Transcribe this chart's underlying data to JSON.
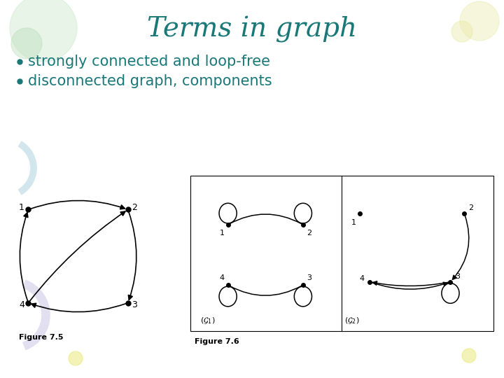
{
  "title": "Terms in graph",
  "title_color": "#1a7878",
  "title_fontsize": 28,
  "bullet_color": "#1a7878",
  "bullet_fontsize": 15,
  "bullets": [
    "strongly connected and loop-free",
    "disconnected graph, components"
  ],
  "fig75_label": "Figure 7.5",
  "fig76_label": "Figure 7.6",
  "bg_color": "#ffffff"
}
